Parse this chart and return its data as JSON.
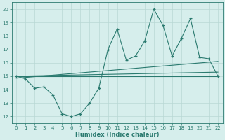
{
  "x": [
    0,
    1,
    2,
    3,
    4,
    5,
    6,
    7,
    8,
    9,
    10,
    11,
    12,
    13,
    14,
    15,
    16,
    17,
    18,
    19,
    20,
    21,
    22
  ],
  "humidex": [
    15.0,
    14.8,
    14.1,
    14.2,
    13.6,
    12.2,
    12.0,
    12.2,
    13.0,
    14.1,
    17.0,
    18.5,
    16.2,
    16.5,
    17.6,
    20.0,
    18.8,
    16.5,
    17.8,
    19.3,
    16.4,
    16.3,
    15.0
  ],
  "trend1_x": [
    0,
    22
  ],
  "trend1_y": [
    15.0,
    15.0
  ],
  "trend2_x": [
    0,
    22
  ],
  "trend2_y": [
    15.0,
    15.3
  ],
  "trend3_x": [
    0,
    22
  ],
  "trend3_y": [
    14.85,
    16.1
  ],
  "color": "#2a7a6f",
  "bg_color": "#d6eeec",
  "grid_color": "#b8d8d4",
  "xlabel": "Humidex (Indice chaleur)",
  "ylim": [
    11.5,
    20.5
  ],
  "xlim": [
    -0.5,
    22.5
  ],
  "yticks": [
    12,
    13,
    14,
    15,
    16,
    17,
    18,
    19,
    20
  ],
  "xticks": [
    0,
    1,
    2,
    3,
    4,
    5,
    6,
    7,
    8,
    9,
    10,
    11,
    12,
    13,
    14,
    15,
    16,
    17,
    18,
    19,
    20,
    21,
    22
  ]
}
